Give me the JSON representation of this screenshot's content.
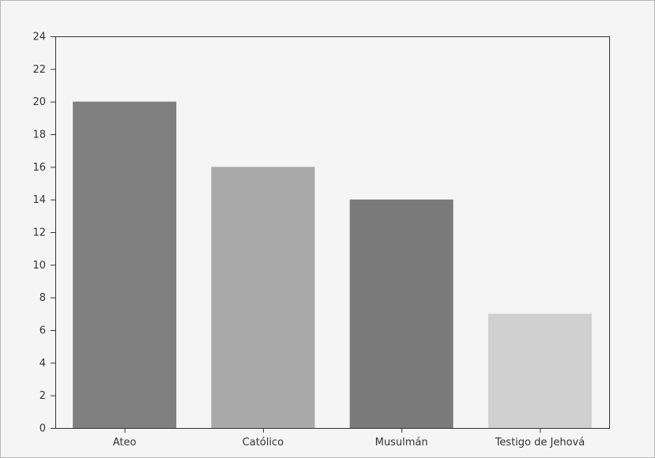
{
  "chart_data": {
    "type": "bar",
    "title": "",
    "xlabel": "",
    "ylabel": "",
    "categories": [
      "Ateo",
      "Católico",
      "Musulmán",
      "Testigo de Jehová"
    ],
    "values": [
      20,
      16,
      14,
      7
    ],
    "bar_colors": [
      "#808080",
      "#a9a9a9",
      "#7a7a7a",
      "#d0d0d0"
    ],
    "ylim": [
      0,
      24
    ],
    "yticks": [
      "0",
      "2",
      "4",
      "6",
      "8",
      "10",
      "12",
      "14",
      "16",
      "18",
      "20",
      "22",
      "24"
    ],
    "grid": false,
    "legend": "none"
  }
}
